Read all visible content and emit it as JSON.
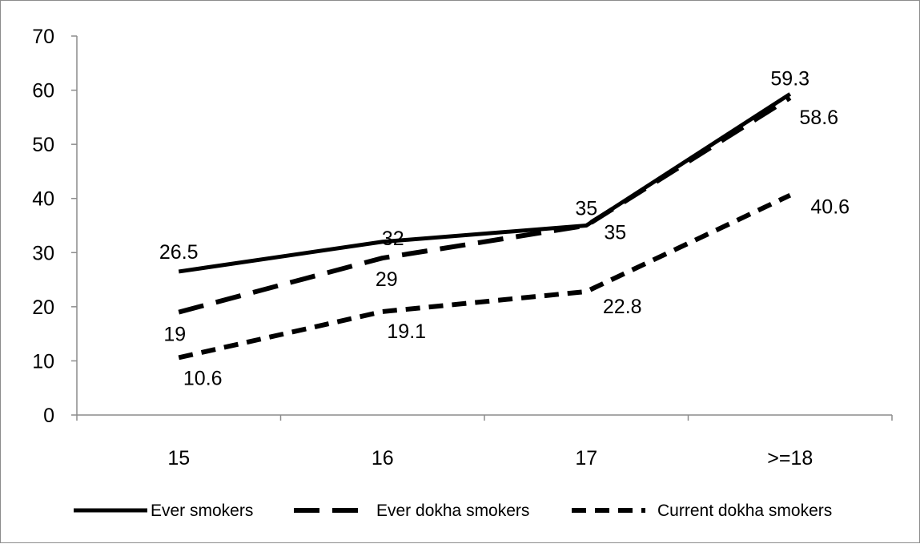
{
  "chart_data": {
    "type": "line",
    "title": "",
    "xlabel": "",
    "ylabel": "",
    "categories": [
      "15",
      "16",
      "17",
      ">=18"
    ],
    "ylim": [
      0,
      70
    ],
    "yticks": [
      0,
      10,
      20,
      30,
      40,
      50,
      60,
      70
    ],
    "ytick_labels": [
      "0",
      "10",
      "20",
      "30",
      "40",
      "50",
      "60",
      "70"
    ],
    "grid": false,
    "legend_position": "bottom",
    "series": [
      {
        "name": "Ever smokers",
        "values": [
          26.5,
          32,
          35,
          59.3
        ],
        "labels": [
          "26.5",
          "32",
          "35",
          "59.3"
        ],
        "style": "solid",
        "color": "#000000"
      },
      {
        "name": "Ever dokha smokers",
        "values": [
          19,
          29,
          35,
          58.6
        ],
        "labels": [
          "19",
          "29",
          "35",
          "58.6"
        ],
        "style": "long-dash",
        "color": "#000000"
      },
      {
        "name": "Current dokha smokers",
        "values": [
          10.6,
          19.1,
          22.8,
          40.6
        ],
        "labels": [
          "10.6",
          "19.1",
          "22.8",
          "40.6"
        ],
        "style": "short-dash",
        "color": "#000000"
      }
    ]
  }
}
